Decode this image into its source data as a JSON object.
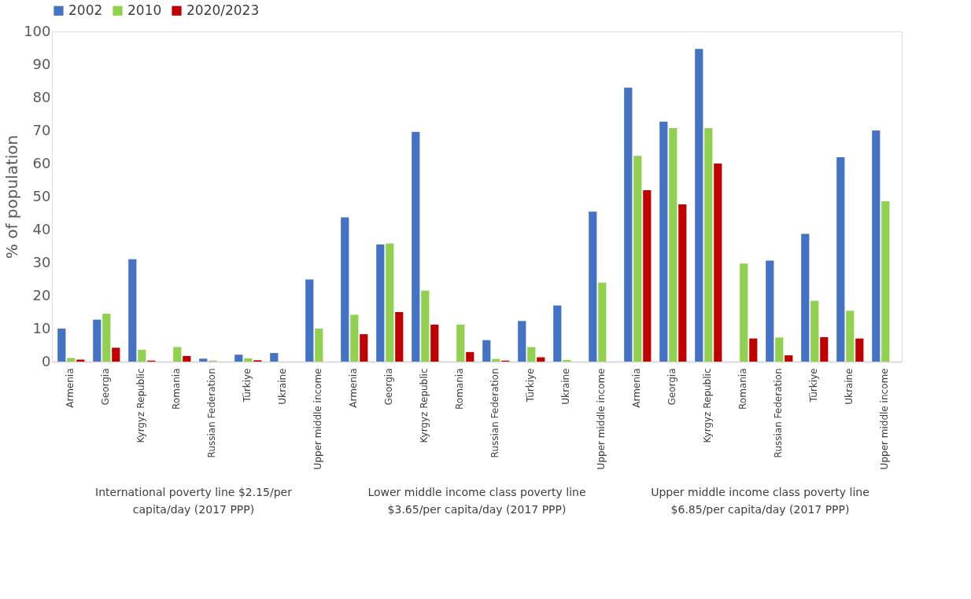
{
  "chart_data": {
    "type": "bar",
    "ylabel": "% of population",
    "categories": [
      "Armenia",
      "Georgia",
      "Kyrgyz Republic",
      "Romania",
      "Russian Federation",
      "Türkiye",
      "Ukraine",
      "Upper middle income",
      "Armenia",
      "Georgia",
      "Kyrgyz Republic",
      "Romania",
      "Russian Federation",
      "Türkiye",
      "Ukraine",
      "Upper middle income",
      "Armenia",
      "Georgia",
      "Kyrgyz Republic",
      "Romania",
      "Russian Federation",
      "Türkiye",
      "Ukraine",
      "Upper middle income"
    ],
    "series": [
      {
        "name": "2002",
        "color": "#4472c4",
        "values": [
          10,
          12.7,
          31,
          null,
          0.9,
          2.1,
          2.6,
          24.9,
          43.7,
          35.5,
          69.6,
          null,
          6.5,
          12.3,
          17,
          45.4,
          83,
          72.7,
          94.7,
          null,
          30.6,
          38.7,
          61.9,
          70
        ]
      },
      {
        "name": "2010",
        "color": "#92d050",
        "values": [
          1.1,
          14.5,
          3.6,
          4.4,
          0.3,
          1.0,
          null,
          10,
          14.2,
          35.8,
          21.5,
          11.2,
          0.8,
          4.4,
          0.5,
          23.9,
          62.3,
          70.7,
          70.7,
          29.7,
          7.3,
          18.4,
          15.4,
          48.6
        ]
      },
      {
        "name": "2020/2023",
        "color": "#c00000",
        "values": [
          0.6,
          4.2,
          0.3,
          1.7,
          null,
          0.4,
          null,
          null,
          8.3,
          15,
          11.2,
          2.9,
          0.3,
          1.3,
          null,
          null,
          51.9,
          47.6,
          60,
          7,
          1.9,
          7.4,
          7,
          null
        ]
      }
    ],
    "annotations": [
      "International poverty line $2.15/per capita/day (2017 PPP)",
      "Lower middle income class poverty line $3.65/per capita/day (2017 PPP)",
      "Upper middle income class poverty line $6.85/per capita/day (2017 PPP)"
    ],
    "ylim": [
      0,
      100
    ],
    "yticks": [
      0,
      10,
      20,
      30,
      40,
      50,
      60,
      70,
      80,
      90,
      100
    ],
    "grid": false,
    "legend": "top"
  }
}
